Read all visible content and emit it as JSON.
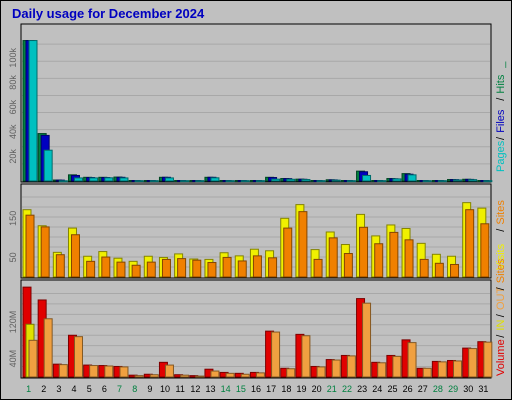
{
  "title": "Daily usage for December 2024",
  "colors": {
    "pages": "#00c0c0",
    "files": "#0000c0",
    "hits": "#008040",
    "visits": "#f0f000",
    "sites": "#f08000",
    "volume": "#e00000",
    "in": "#e0e000",
    "out": "#f0a040",
    "frame": "#000000"
  },
  "chart_data": [
    {
      "type": "bar",
      "panel": "hits",
      "x": [
        "1",
        "2",
        "3",
        "4",
        "5",
        "6",
        "7",
        "8",
        "9",
        "10",
        "11",
        "12",
        "13",
        "14",
        "15",
        "16",
        "17",
        "18",
        "19",
        "20",
        "21",
        "22",
        "23",
        "24",
        "25",
        "26",
        "27",
        "28",
        "29",
        "30",
        "31"
      ],
      "weekend_days": [
        "1",
        "7",
        "8",
        "14",
        "15",
        "21",
        "22",
        "28",
        "29"
      ],
      "ylim": [
        0,
        125000
      ],
      "ticks": [
        20000,
        40000,
        60000,
        80000,
        100000
      ],
      "tick_labels": [
        "20k",
        "40k",
        "60k",
        "80k",
        "100k"
      ],
      "legend": [
        "Pages",
        "/",
        "Files",
        "/",
        "Hits",
        "_"
      ],
      "series": [
        {
          "name": "Hits",
          "values": [
            114000,
            38500,
            800,
            5000,
            3000,
            3000,
            3200,
            400,
            400,
            3000,
            400,
            400,
            3000,
            400,
            400,
            400,
            3000,
            2000,
            1500,
            400,
            1000,
            400,
            8000,
            400,
            2000,
            6000,
            400,
            400,
            1200,
            1400,
            400
          ]
        },
        {
          "name": "Files",
          "values": [
            114000,
            37000,
            700,
            4500,
            2800,
            2800,
            3000,
            400,
            400,
            3000,
            400,
            400,
            3000,
            400,
            400,
            400,
            2800,
            1900,
            1400,
            400,
            900,
            400,
            7500,
            400,
            1800,
            5500,
            400,
            400,
            1100,
            1300,
            400
          ]
        },
        {
          "name": "Pages",
          "values": [
            114000,
            25000,
            200,
            2500,
            2500,
            2600,
            2500,
            300,
            300,
            2500,
            300,
            300,
            2600,
            300,
            300,
            300,
            1500,
            1400,
            1200,
            300,
            700,
            300,
            4500,
            300,
            1700,
            5000,
            300,
            300,
            900,
            1100,
            300
          ]
        }
      ]
    },
    {
      "type": "bar",
      "panel": "visits",
      "x": [
        "1",
        "2",
        "3",
        "4",
        "5",
        "6",
        "7",
        "8",
        "9",
        "10",
        "11",
        "12",
        "13",
        "14",
        "15",
        "16",
        "17",
        "18",
        "19",
        "20",
        "21",
        "22",
        "23",
        "24",
        "25",
        "26",
        "27",
        "28",
        "29",
        "30",
        "31"
      ],
      "ylim": [
        0,
        230
      ],
      "ticks": [
        50,
        150
      ],
      "tick_labels": [
        "50",
        "150"
      ],
      "legend": [
        "Visits",
        "/",
        "Sites"
      ],
      "series": [
        {
          "name": "Visits",
          "values": [
            172,
            131,
            63,
            125,
            53,
            65,
            48,
            40,
            53,
            50,
            59,
            46,
            45,
            62,
            54,
            71,
            67,
            150,
            185,
            70,
            115,
            83,
            160,
            105,
            133,
            124,
            86,
            58,
            53,
            190,
            176
          ]
        },
        {
          "name": "Sites",
          "values": [
            158,
            128,
            57,
            108,
            40,
            51,
            38,
            30,
            38,
            45,
            47,
            43,
            37,
            50,
            41,
            54,
            49,
            125,
            167,
            45,
            100,
            60,
            127,
            85,
            114,
            95,
            45,
            35,
            32,
            172,
            136
          ]
        }
      ]
    },
    {
      "type": "bar",
      "panel": "volume",
      "x": [
        "1",
        "2",
        "3",
        "4",
        "5",
        "6",
        "7",
        "8",
        "9",
        "10",
        "11",
        "12",
        "13",
        "14",
        "15",
        "16",
        "17",
        "18",
        "19",
        "20",
        "21",
        "22",
        "23",
        "24",
        "25",
        "26",
        "27",
        "28",
        "29",
        "30",
        "31"
      ],
      "ylim": [
        0,
        205
      ],
      "ticks": [
        40,
        120
      ],
      "tick_labels": [
        "40M",
        "120M"
      ],
      "legend": [
        "Volume",
        "/",
        "IN",
        "/",
        "OUT",
        "/",
        "Sites"
      ],
      "series": [
        {
          "name": "Volume",
          "values": [
            196,
            168,
            28,
            91,
            26,
            25,
            23,
            4,
            6,
            32,
            5,
            3,
            17,
            10,
            8,
            10,
            100,
            19,
            93,
            23,
            38,
            47,
            171,
            32,
            47,
            81,
            19,
            34,
            36,
            63,
            77
          ]
        },
        {
          "name": "IN",
          "values": [
            115,
            0,
            0,
            0,
            0,
            0,
            0,
            0,
            0,
            0,
            0,
            0,
            0,
            0,
            0,
            0,
            0,
            0,
            0,
            0,
            0,
            0,
            0,
            0,
            0,
            0,
            0,
            0,
            0,
            0,
            0
          ]
        },
        {
          "name": "OUT",
          "values": [
            80,
            127,
            27,
            88,
            25,
            24,
            22,
            3,
            5,
            26,
            4,
            2,
            13,
            8,
            6,
            9,
            98,
            18,
            90,
            22,
            37,
            46,
            161,
            31,
            45,
            75,
            19,
            33,
            35,
            62,
            76
          ]
        }
      ]
    }
  ]
}
